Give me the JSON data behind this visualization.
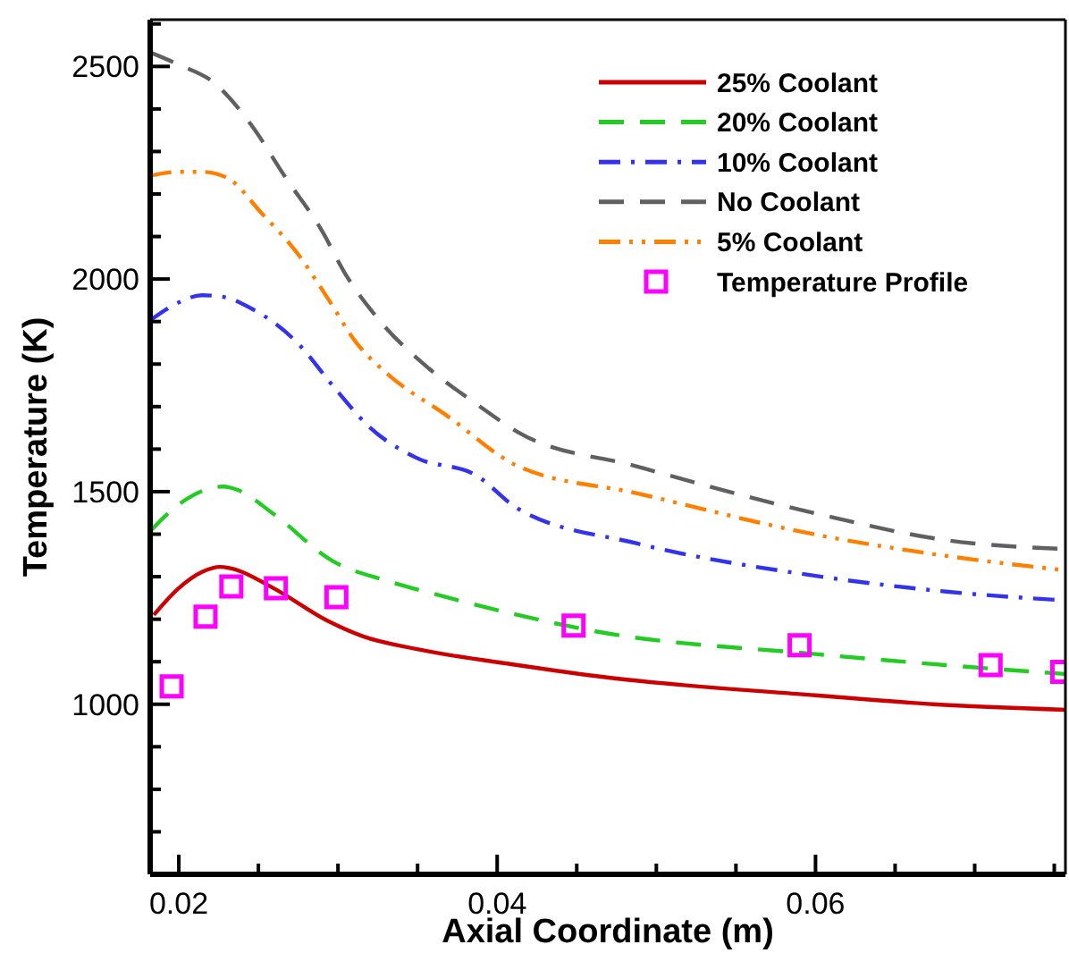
{
  "chart_data": {
    "type": "line",
    "xlabel": "Axial Coordinate (m)",
    "ylabel": "Temperature (K)",
    "xlim": [
      0.0182,
      0.0757
    ],
    "ylim": [
      600,
      2610
    ],
    "xticks": [
      0.02,
      {
        "value": 0.025,
        "label": null
      },
      {
        "value": 0.03,
        "label": null
      },
      {
        "value": 0.035,
        "label": null
      },
      0.04,
      {
        "value": 0.045,
        "label": null
      },
      {
        "value": 0.05,
        "label": null
      },
      {
        "value": 0.055,
        "label": null
      },
      0.06,
      {
        "value": 0.065,
        "label": null
      },
      {
        "value": 0.07,
        "label": null
      },
      {
        "value": 0.075,
        "label": null
      }
    ],
    "yticks": [
      {
        "value": 600,
        "label": null
      },
      {
        "value": 700,
        "label": null
      },
      {
        "value": 800,
        "label": null
      },
      {
        "value": 900,
        "label": null
      },
      1000,
      {
        "value": 1100,
        "label": null
      },
      {
        "value": 1200,
        "label": null
      },
      {
        "value": 1300,
        "label": null
      },
      {
        "value": 1400,
        "label": null
      },
      1500,
      {
        "value": 1600,
        "label": null
      },
      {
        "value": 1700,
        "label": null
      },
      {
        "value": 1800,
        "label": null
      },
      {
        "value": 1900,
        "label": null
      },
      2000,
      {
        "value": 2100,
        "label": null
      },
      {
        "value": 2200,
        "label": null
      },
      {
        "value": 2300,
        "label": null
      },
      {
        "value": 2400,
        "label": null
      },
      2500,
      {
        "value": 2600,
        "label": null
      }
    ],
    "grid": false,
    "legend": "top right",
    "series": [
      {
        "name": "25% Coolant",
        "color": "#cc0000",
        "line_style": "solid",
        "marker": "none",
        "x": [
          0.01843,
          0.02,
          0.02146,
          0.02258,
          0.02336,
          0.02594,
          0.0293,
          0.03154,
          0.0349,
          0.04129,
          0.0469,
          0.06,
          0.0674,
          0.0757
        ],
        "values": [
          1210,
          1273,
          1311,
          1323,
          1319,
          1273,
          1197,
          1160,
          1130,
          1092,
          1063,
          1021,
          1000,
          987
        ]
      },
      {
        "name": "20% Coolant",
        "color": "#22cc22",
        "line_style": "dashed",
        "marker": "none",
        "x": [
          0.0182,
          0.02,
          0.0228,
          0.0237,
          0.0259,
          0.0297,
          0.0331,
          0.0368,
          0.0413,
          0.0461,
          0.06,
          0.0682,
          0.0757
        ],
        "values": [
          1407,
          1470,
          1512,
          1504,
          1449,
          1336,
          1290,
          1252,
          1210,
          1172,
          1118,
          1092,
          1071
        ]
      },
      {
        "name": "10% Coolant",
        "color": "#3333ee",
        "line_style": "dashdot",
        "marker": "none",
        "x": [
          0.0182,
          0.02,
          0.02146,
          0.0228,
          0.0245,
          0.0275,
          0.0297,
          0.032,
          0.0349,
          0.0387,
          0.0413,
          0.0488,
          0.06,
          0.0682,
          0.0757
        ],
        "values": [
          1903,
          1945,
          1962,
          1958,
          1932,
          1848,
          1748,
          1651,
          1580,
          1538,
          1460,
          1378,
          1302,
          1265,
          1244
        ]
      },
      {
        "name": "No Coolant",
        "color": "#606060",
        "line_style": "dashed",
        "marker": "none",
        "x": [
          0.0182,
          0.02,
          0.0222,
          0.0245,
          0.0267,
          0.029,
          0.0304,
          0.0326,
          0.0357,
          0.0387,
          0.0413,
          0.0488,
          0.06,
          0.0682,
          0.0757
        ],
        "values": [
          2533,
          2504,
          2462,
          2365,
          2239,
          2113,
          2016,
          1903,
          1790,
          1706,
          1640,
          1559,
          1449,
          1386,
          1365
        ]
      },
      {
        "name": "5% Coolant",
        "color": "#ff8000",
        "line_style": "dashdotdot",
        "marker": "none",
        "x": [
          0.0182,
          0.02,
          0.02146,
          0.023,
          0.0252,
          0.0275,
          0.0293,
          0.0312,
          0.0331,
          0.0368,
          0.0413,
          0.0488,
          0.06,
          0.0682,
          0.0757
        ],
        "values": [
          2243,
          2252,
          2252,
          2239,
          2155,
          2058,
          1958,
          1848,
          1777,
          1680,
          1560,
          1496,
          1399,
          1349,
          1315
        ]
      },
      {
        "name": "Temperature Profile",
        "type": "scatter",
        "color": "#ff00ff",
        "marker": "square",
        "x": [
          0.01955,
          0.02168,
          0.0233,
          0.0261,
          0.0299,
          0.0448,
          0.059,
          0.071,
          0.0755
        ],
        "values": [
          1042,
          1206,
          1277,
          1273,
          1252,
          1185,
          1139,
          1092,
          1076
        ]
      }
    ]
  }
}
